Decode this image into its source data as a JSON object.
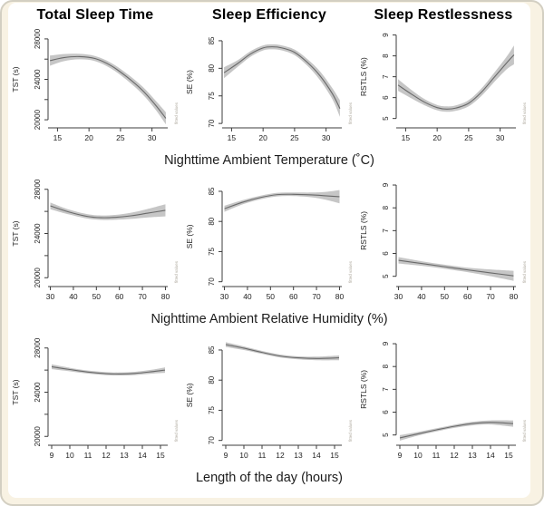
{
  "figure": {
    "watermark": "fitted values"
  },
  "columns": [
    {
      "title": "Total Sleep Time"
    },
    {
      "title": "Sleep Efficiency"
    },
    {
      "title": "Sleep Restlessness"
    }
  ],
  "rows": [
    {
      "xlabel": "Nighttime Ambient Temperature (˚C)"
    },
    {
      "xlabel": "Nighttime Ambient Relative Humidity (%)"
    },
    {
      "xlabel": "Length of the day (hours)"
    }
  ],
  "style": {
    "background": "#f8f2e3",
    "panel_background": "#ffffff",
    "border_color": "#d3cfc2",
    "band_color": "#c6c6c6",
    "line_color": "#6a6a6a",
    "axis_color": "#3c3c3c",
    "tick_text_color": "#222222",
    "watermark_color": "#b0aba0"
  },
  "chart_data": [
    {
      "type": "line",
      "row": 0,
      "col": 0,
      "series_name": "TST vs temperature",
      "ylabel": "TST (s)",
      "xlim": [
        13.5,
        32.5
      ],
      "ylim": [
        19200,
        28800
      ],
      "xticks": [
        15,
        20,
        25,
        30
      ],
      "yticks": [
        20000,
        24000,
        28000
      ],
      "yticks_minor": [
        22000,
        26000
      ],
      "grid": false,
      "x": [
        13.8,
        16,
        18.5,
        21,
        23.5,
        26,
        28.5,
        30.5,
        32.2
      ],
      "y": [
        25850,
        26150,
        26250,
        26050,
        25350,
        24250,
        22900,
        21500,
        20150
      ],
      "ci_lower": [
        25350,
        25800,
        25980,
        25800,
        25070,
        23930,
        22520,
        21050,
        19550
      ],
      "ci_upper": [
        26350,
        26500,
        26520,
        26300,
        25630,
        24570,
        23280,
        21950,
        20750
      ]
    },
    {
      "type": "line",
      "row": 0,
      "col": 1,
      "series_name": "SE vs temperature",
      "ylabel": "SE (%)",
      "xlim": [
        13.5,
        32.5
      ],
      "ylim": [
        69.2,
        86.8
      ],
      "xticks": [
        15,
        20,
        25,
        30
      ],
      "yticks": [
        70,
        75,
        80,
        85
      ],
      "yticks_minor": [],
      "grid": false,
      "x": [
        13.8,
        16,
        18,
        20,
        21.5,
        23,
        25,
        27,
        29,
        31,
        32.2
      ],
      "y": [
        79.2,
        80.9,
        82.6,
        83.7,
        83.9,
        83.7,
        82.9,
        81.1,
        78.7,
        75.4,
        72.7
      ],
      "ci_lower": [
        78.2,
        80.3,
        82.1,
        83.25,
        83.45,
        83.25,
        82.4,
        80.5,
        77.9,
        74.4,
        71.2
      ],
      "ci_upper": [
        80.2,
        81.5,
        83.1,
        84.15,
        84.35,
        84.15,
        83.4,
        81.7,
        79.5,
        76.4,
        74.2
      ]
    },
    {
      "type": "line",
      "row": 0,
      "col": 2,
      "series_name": "RSTLS vs temperature",
      "ylabel": "RSTLS (%)",
      "xlim": [
        13.5,
        32.5
      ],
      "ylim": [
        4.55,
        9.2
      ],
      "xticks": [
        15,
        20,
        25,
        30
      ],
      "yticks": [
        5,
        6,
        7,
        8,
        9
      ],
      "yticks_minor": [],
      "grid": false,
      "x": [
        13.8,
        16,
        18,
        20,
        21.5,
        23,
        25,
        27,
        29,
        31,
        32.2
      ],
      "y": [
        6.6,
        6.15,
        5.78,
        5.52,
        5.45,
        5.5,
        5.73,
        6.25,
        6.95,
        7.65,
        8.05
      ],
      "ci_lower": [
        6.32,
        5.95,
        5.63,
        5.39,
        5.32,
        5.37,
        5.58,
        6.07,
        6.73,
        7.35,
        7.6
      ],
      "ci_upper": [
        6.88,
        6.35,
        5.93,
        5.65,
        5.58,
        5.63,
        5.88,
        6.43,
        7.17,
        7.95,
        8.5
      ]
    },
    {
      "type": "line",
      "row": 1,
      "col": 0,
      "series_name": "TST vs humidity",
      "ylabel": "TST (s)",
      "xlim": [
        29,
        81
      ],
      "ylim": [
        19200,
        28800
      ],
      "xticks": [
        30,
        40,
        50,
        60,
        70,
        80
      ],
      "yticks": [
        20000,
        24000,
        28000
      ],
      "yticks_minor": [
        22000,
        26000
      ],
      "grid": false,
      "x": [
        30,
        38,
        46,
        52,
        58,
        65,
        72,
        80
      ],
      "y": [
        26500,
        25950,
        25550,
        25430,
        25460,
        25600,
        25830,
        26100
      ],
      "ci_lower": [
        26200,
        25730,
        25350,
        25230,
        25240,
        25320,
        25450,
        25550
      ],
      "ci_upper": [
        26800,
        26170,
        25750,
        25630,
        25680,
        25880,
        26210,
        26650
      ]
    },
    {
      "type": "line",
      "row": 1,
      "col": 1,
      "series_name": "SE vs humidity",
      "ylabel": "SE (%)",
      "xlim": [
        29,
        81
      ],
      "ylim": [
        69.2,
        86.8
      ],
      "xticks": [
        30,
        40,
        50,
        60,
        70,
        80
      ],
      "yticks": [
        70,
        75,
        80,
        85
      ],
      "yticks_minor": [],
      "grid": false,
      "x": [
        30,
        38,
        46,
        53,
        60,
        68,
        74,
        80
      ],
      "y": [
        82.1,
        83.2,
        84.0,
        84.45,
        84.5,
        84.4,
        84.25,
        84.1
      ],
      "ci_lower": [
        81.6,
        82.85,
        83.7,
        84.15,
        84.2,
        84.0,
        83.6,
        83.0
      ],
      "ci_upper": [
        82.6,
        83.55,
        84.3,
        84.75,
        84.8,
        84.8,
        84.9,
        85.2
      ]
    },
    {
      "type": "line",
      "row": 1,
      "col": 2,
      "series_name": "RSTLS vs humidity",
      "ylabel": "RSTLS (%)",
      "xlim": [
        29,
        81
      ],
      "ylim": [
        4.55,
        9.2
      ],
      "xticks": [
        30,
        40,
        50,
        60,
        70,
        80
      ],
      "yticks": [
        5,
        6,
        7,
        8,
        9
      ],
      "yticks_minor": [],
      "grid": false,
      "x": [
        30,
        40,
        50,
        60,
        70,
        80
      ],
      "y": [
        5.7,
        5.56,
        5.42,
        5.28,
        5.15,
        5.02
      ],
      "ci_lower": [
        5.56,
        5.46,
        5.33,
        5.18,
        5.0,
        4.8
      ],
      "ci_upper": [
        5.84,
        5.66,
        5.51,
        5.38,
        5.3,
        5.24
      ]
    },
    {
      "type": "line",
      "row": 2,
      "col": 0,
      "series_name": "TST vs day length",
      "ylabel": "TST (s)",
      "xlim": [
        8.8,
        15.4
      ],
      "ylim": [
        19200,
        28800
      ],
      "xticks": [
        9,
        10,
        11,
        12,
        13,
        14,
        15
      ],
      "yticks": [
        20000,
        24000,
        28000
      ],
      "yticks_minor": [
        22000,
        26000
      ],
      "grid": false,
      "x": [
        9,
        10,
        11,
        12,
        12.8,
        13.6,
        14.5,
        15.25
      ],
      "y": [
        26300,
        26050,
        25820,
        25680,
        25650,
        25700,
        25850,
        26000
      ],
      "ci_lower": [
        26080,
        25890,
        25680,
        25540,
        25510,
        25550,
        25670,
        25750
      ],
      "ci_upper": [
        26520,
        26210,
        25960,
        25820,
        25790,
        25850,
        26030,
        26250
      ]
    },
    {
      "type": "line",
      "row": 2,
      "col": 1,
      "series_name": "SE vs day length",
      "ylabel": "SE (%)",
      "xlim": [
        8.8,
        15.4
      ],
      "ylim": [
        69.2,
        86.8
      ],
      "xticks": [
        9,
        10,
        11,
        12,
        13,
        14,
        15
      ],
      "yticks": [
        70,
        75,
        80,
        85
      ],
      "yticks_minor": [],
      "grid": false,
      "x": [
        9,
        10,
        11,
        12,
        13,
        14,
        15.25
      ],
      "y": [
        85.9,
        85.3,
        84.6,
        84.0,
        83.7,
        83.6,
        83.7
      ],
      "ci_lower": [
        85.5,
        85.0,
        84.35,
        83.75,
        83.45,
        83.3,
        83.3
      ],
      "ci_upper": [
        86.3,
        85.6,
        84.85,
        84.25,
        83.95,
        83.9,
        84.1
      ]
    },
    {
      "type": "line",
      "row": 2,
      "col": 2,
      "series_name": "RSTLS vs day length",
      "ylabel": "RSTLS (%)",
      "xlim": [
        8.8,
        15.4
      ],
      "ylim": [
        4.55,
        9.2
      ],
      "xticks": [
        9,
        10,
        11,
        12,
        13,
        14,
        15
      ],
      "yticks": [
        5,
        6,
        7,
        8,
        9
      ],
      "yticks_minor": [],
      "grid": false,
      "x": [
        9,
        10,
        11,
        12,
        13,
        14,
        15.25
      ],
      "y": [
        4.87,
        5.05,
        5.22,
        5.38,
        5.5,
        5.55,
        5.5
      ],
      "ci_lower": [
        4.75,
        4.97,
        5.15,
        5.31,
        5.42,
        5.46,
        5.36
      ],
      "ci_upper": [
        4.99,
        5.13,
        5.29,
        5.45,
        5.58,
        5.64,
        5.64
      ]
    }
  ]
}
